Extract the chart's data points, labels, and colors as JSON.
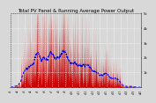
{
  "title": "Total PV Panel & Running Average Power Output",
  "title_fontsize": 4.0,
  "bg_color": "#d8d8d8",
  "plot_bg_color": "#d8d8d8",
  "grid_color": "#ffffff",
  "area_color": "#cc0000",
  "avg_color": "#0000ff",
  "ylim": [
    0,
    5000
  ],
  "yticks": [
    1000,
    2000,
    3000,
    4000,
    5000
  ],
  "ytick_labels": [
    "1k",
    "2k",
    "3k",
    "4k",
    "5k"
  ],
  "n_points": 2000,
  "avg_window": 80
}
